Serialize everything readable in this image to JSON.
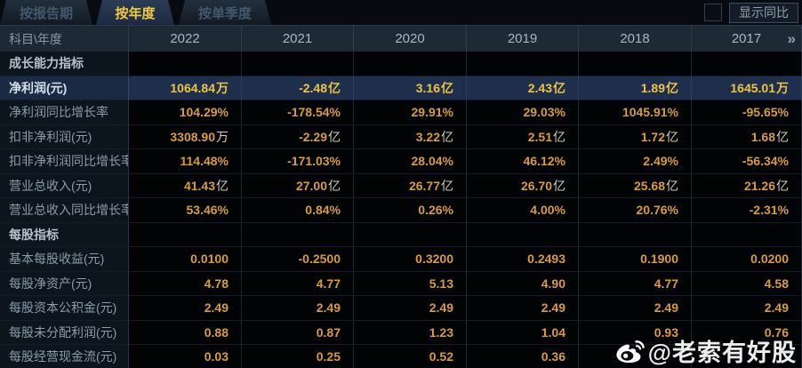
{
  "tabs": [
    {
      "label": "按报告期",
      "active": false
    },
    {
      "label": "按年度",
      "active": true
    },
    {
      "label": "按单季度",
      "active": false
    }
  ],
  "controls": {
    "show_yoy_label": "显示同比",
    "checkbox_checked": false
  },
  "table": {
    "corner_label": "科目\\年度",
    "years": [
      "2022",
      "2021",
      "2020",
      "2019",
      "2018",
      "2017"
    ],
    "next_icon": "»",
    "rows": [
      {
        "type": "section",
        "label": "成长能力指标",
        "values": [
          "",
          "",
          "",
          "",
          "",
          ""
        ]
      },
      {
        "type": "highlight",
        "label": "净利润(元)",
        "values": [
          "1064.84万",
          "-2.48亿",
          "3.16亿",
          "2.43亿",
          "1.89亿",
          "1645.01万"
        ]
      },
      {
        "type": "",
        "label": "净利润同比增长率",
        "values": [
          "104.29%",
          "-178.54%",
          "29.91%",
          "29.03%",
          "1045.91%",
          "-95.65%"
        ]
      },
      {
        "type": "",
        "label": "扣非净利润(元)",
        "values": [
          "3308.90万",
          "-2.29亿",
          "3.22亿",
          "2.51亿",
          "1.72亿",
          "1.68亿"
        ]
      },
      {
        "type": "",
        "label": "扣非净利润同比增长率",
        "values": [
          "114.48%",
          "-171.03%",
          "28.04%",
          "46.12%",
          "2.49%",
          "-56.34%"
        ]
      },
      {
        "type": "",
        "label": "营业总收入(元)",
        "values": [
          "41.43亿",
          "27.00亿",
          "26.77亿",
          "26.70亿",
          "25.68亿",
          "21.26亿"
        ]
      },
      {
        "type": "",
        "label": "营业总收入同比增长率",
        "values": [
          "53.46%",
          "0.84%",
          "0.26%",
          "4.00%",
          "20.76%",
          "-2.31%"
        ]
      },
      {
        "type": "section",
        "label": "每股指标",
        "values": [
          "",
          "",
          "",
          "",
          "",
          ""
        ]
      },
      {
        "type": "",
        "label": "基本每股收益(元)",
        "values": [
          "0.0100",
          "-0.2500",
          "0.3200",
          "0.2493",
          "0.1900",
          "0.0200"
        ]
      },
      {
        "type": "",
        "label": "每股净资产(元)",
        "values": [
          "4.78",
          "4.77",
          "5.13",
          "4.90",
          "4.77",
          "4.58"
        ]
      },
      {
        "type": "",
        "label": "每股资本公积金(元)",
        "values": [
          "2.49",
          "2.49",
          "2.49",
          "2.49",
          "2.49",
          "2.49"
        ]
      },
      {
        "type": "",
        "label": "每股未分配利润(元)",
        "values": [
          "0.88",
          "0.87",
          "1.23",
          "1.04",
          "0.93",
          "0.76"
        ]
      },
      {
        "type": "",
        "label": "每股经营现金流(元)",
        "values": [
          "0.03",
          "0.25",
          "0.52",
          "0.36",
          "",
          ""
        ]
      }
    ]
  },
  "watermark": {
    "text": "@老索有好股"
  },
  "colors": {
    "accent_yellow": "#f2c83e",
    "value_orange": "#d89c3e",
    "highlight_row_bg": "#1d2f4d",
    "header_bg": "#1d2935",
    "label_col_bg": "#0c141d"
  }
}
